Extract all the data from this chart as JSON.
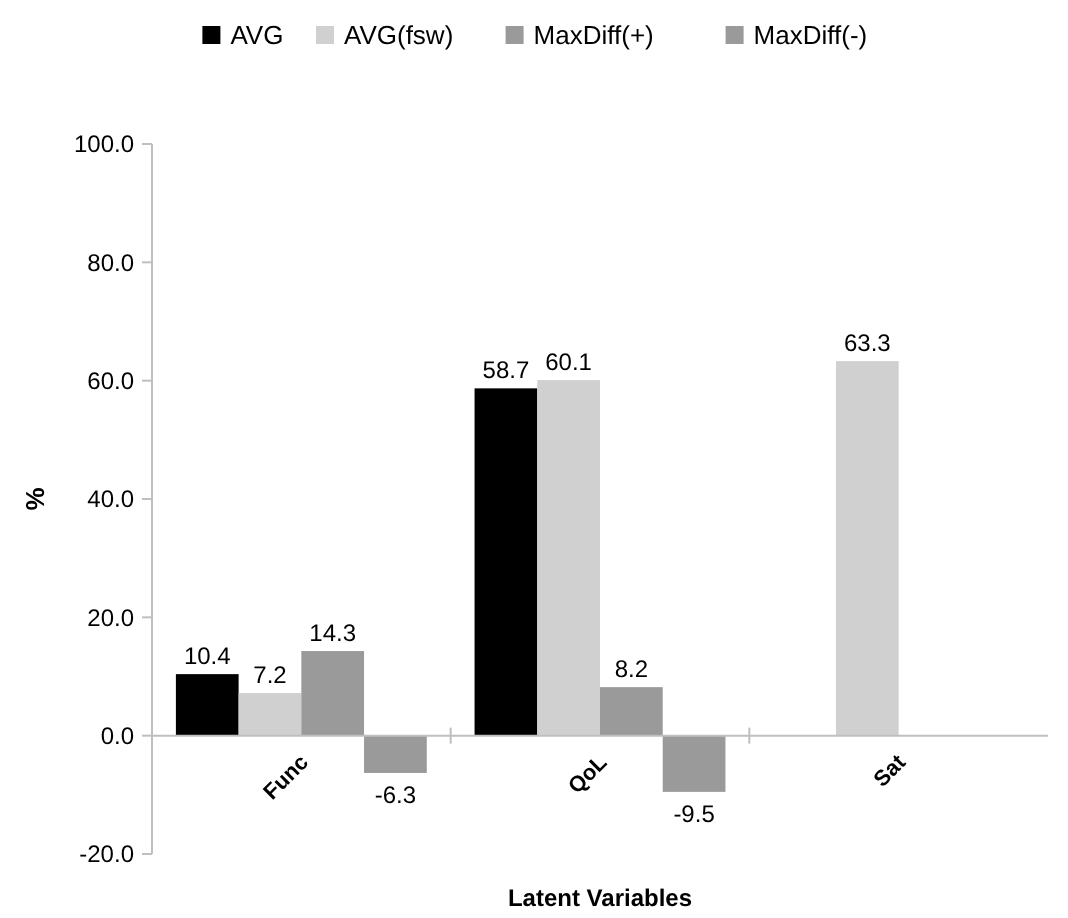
{
  "chart_data": {
    "type": "bar",
    "xlabel": "Latent Variables",
    "ylabel": "%",
    "categories": [
      "Func",
      "QoL",
      "Sat"
    ],
    "series": [
      {
        "name": "AVG",
        "color": "#000000",
        "values": [
          10.4,
          58.7,
          null
        ]
      },
      {
        "name": "AVG(fsw)",
        "color": "#d0d0d0",
        "values": [
          7.2,
          60.1,
          63.3
        ]
      },
      {
        "name": "MaxDiff(+)",
        "color": "#9a9a9a",
        "values": [
          14.3,
          8.2,
          null
        ]
      },
      {
        "name": "MaxDiff(-)",
        "color": "#9a9a9a",
        "values": [
          -6.3,
          -9.5,
          null
        ]
      }
    ],
    "ylim": [
      -20,
      100
    ],
    "yticks": [
      {
        "value": -20,
        "label": "-20.0"
      },
      {
        "value": 0,
        "label": "0.0"
      },
      {
        "value": 20,
        "label": "20.0"
      },
      {
        "value": 40,
        "label": "40.0"
      },
      {
        "value": 60,
        "label": "60.0"
      },
      {
        "value": 80,
        "label": "80.0"
      },
      {
        "value": 100,
        "label": "100.0"
      }
    ],
    "data_labels": true,
    "legend": "top",
    "grid": false
  }
}
